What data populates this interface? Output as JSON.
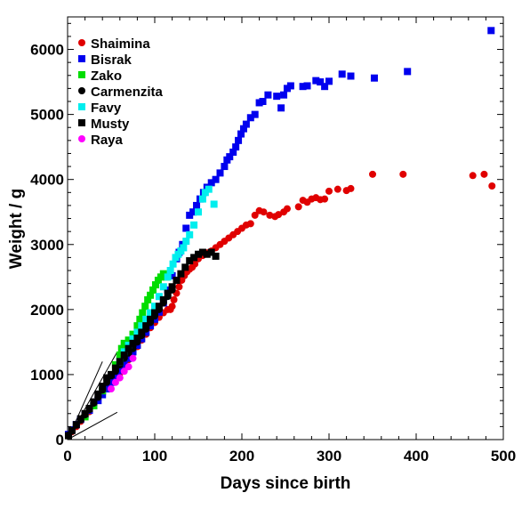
{
  "chart_data": {
    "type": "scatter",
    "title": "",
    "xlabel": "Days since birth",
    "ylabel": "Weight / g",
    "xlim": [
      0,
      500
    ],
    "ylim": [
      0,
      6500
    ],
    "x_ticks": [
      0,
      100,
      200,
      300,
      400,
      500
    ],
    "y_ticks": [
      0,
      1000,
      2000,
      3000,
      4000,
      5000,
      6000
    ],
    "grid": false,
    "legend_position": "top-left",
    "series": [
      {
        "name": "Shaimina",
        "marker": "circle",
        "color": "#e00000",
        "points": [
          [
            1,
            60
          ],
          [
            5,
            120
          ],
          [
            10,
            200
          ],
          [
            15,
            280
          ],
          [
            20,
            350
          ],
          [
            25,
            430
          ],
          [
            30,
            520
          ],
          [
            35,
            620
          ],
          [
            40,
            700
          ],
          [
            45,
            790
          ],
          [
            50,
            880
          ],
          [
            55,
            950
          ],
          [
            60,
            1020
          ],
          [
            65,
            1120
          ],
          [
            70,
            1230
          ],
          [
            75,
            1330
          ],
          [
            80,
            1430
          ],
          [
            85,
            1530
          ],
          [
            90,
            1620
          ],
          [
            95,
            1720
          ],
          [
            100,
            1800
          ],
          [
            105,
            1880
          ],
          [
            110,
            1950
          ],
          [
            115,
            2000
          ],
          [
            118,
            2000
          ],
          [
            120,
            2050
          ],
          [
            122,
            2150
          ],
          [
            125,
            2250
          ],
          [
            128,
            2350
          ],
          [
            131,
            2450
          ],
          [
            134,
            2520
          ],
          [
            137,
            2580
          ],
          [
            140,
            2620
          ],
          [
            143,
            2650
          ],
          [
            146,
            2700
          ],
          [
            150,
            2780
          ],
          [
            155,
            2830
          ],
          [
            160,
            2870
          ],
          [
            165,
            2900
          ],
          [
            170,
            2950
          ],
          [
            175,
            3000
          ],
          [
            180,
            3050
          ],
          [
            185,
            3100
          ],
          [
            190,
            3150
          ],
          [
            195,
            3200
          ],
          [
            200,
            3250
          ],
          [
            205,
            3300
          ],
          [
            210,
            3320
          ],
          [
            215,
            3450
          ],
          [
            220,
            3520
          ],
          [
            225,
            3500
          ],
          [
            232,
            3450
          ],
          [
            238,
            3430
          ],
          [
            242,
            3460
          ],
          [
            248,
            3500
          ],
          [
            252,
            3550
          ],
          [
            265,
            3580
          ],
          [
            270,
            3680
          ],
          [
            275,
            3650
          ],
          [
            280,
            3700
          ],
          [
            285,
            3720
          ],
          [
            290,
            3690
          ],
          [
            295,
            3700
          ],
          [
            300,
            3820
          ],
          [
            310,
            3850
          ],
          [
            320,
            3830
          ],
          [
            325,
            3860
          ],
          [
            350,
            4080
          ],
          [
            385,
            4080
          ],
          [
            465,
            4060
          ],
          [
            478,
            4080
          ],
          [
            487,
            3900
          ]
        ]
      },
      {
        "name": "Bisrak",
        "marker": "square",
        "color": "#0000ee",
        "points": [
          [
            1,
            80
          ],
          [
            5,
            150
          ],
          [
            10,
            230
          ],
          [
            15,
            310
          ],
          [
            20,
            380
          ],
          [
            25,
            450
          ],
          [
            30,
            520
          ],
          [
            35,
            600
          ],
          [
            40,
            690
          ],
          [
            45,
            780
          ],
          [
            50,
            880
          ],
          [
            55,
            970
          ],
          [
            60,
            1060
          ],
          [
            65,
            1160
          ],
          [
            70,
            1250
          ],
          [
            75,
            1350
          ],
          [
            80,
            1450
          ],
          [
            85,
            1550
          ],
          [
            90,
            1650
          ],
          [
            95,
            1750
          ],
          [
            100,
            1850
          ],
          [
            105,
            1960
          ],
          [
            110,
            2100
          ],
          [
            115,
            2300
          ],
          [
            120,
            2520
          ],
          [
            125,
            2780
          ],
          [
            128,
            2880
          ],
          [
            132,
            3000
          ],
          [
            136,
            3250
          ],
          [
            140,
            3450
          ],
          [
            144,
            3500
          ],
          [
            148,
            3600
          ],
          [
            152,
            3700
          ],
          [
            156,
            3800
          ],
          [
            160,
            3880
          ],
          [
            165,
            3950
          ],
          [
            170,
            4000
          ],
          [
            175,
            4100
          ],
          [
            180,
            4200
          ],
          [
            183,
            4300
          ],
          [
            186,
            4350
          ],
          [
            190,
            4420
          ],
          [
            193,
            4500
          ],
          [
            196,
            4600
          ],
          [
            199,
            4700
          ],
          [
            202,
            4780
          ],
          [
            205,
            4850
          ],
          [
            210,
            4950
          ],
          [
            215,
            5000
          ],
          [
            220,
            5180
          ],
          [
            224,
            5200
          ],
          [
            230,
            5300
          ],
          [
            240,
            5280
          ],
          [
            245,
            5100
          ],
          [
            248,
            5300
          ],
          [
            252,
            5400
          ],
          [
            256,
            5440
          ],
          [
            270,
            5430
          ],
          [
            275,
            5440
          ],
          [
            285,
            5520
          ],
          [
            290,
            5500
          ],
          [
            295,
            5430
          ],
          [
            300,
            5510
          ],
          [
            315,
            5620
          ],
          [
            325,
            5590
          ],
          [
            352,
            5560
          ],
          [
            390,
            5660
          ],
          [
            486,
            6290
          ]
        ]
      },
      {
        "name": "Zako",
        "marker": "square",
        "color": "#00dd00",
        "points": [
          [
            20,
            350
          ],
          [
            30,
            520
          ],
          [
            40,
            750
          ],
          [
            50,
            1000
          ],
          [
            55,
            1150
          ],
          [
            60,
            1300
          ],
          [
            62,
            1400
          ],
          [
            65,
            1480
          ],
          [
            70,
            1530
          ],
          [
            75,
            1620
          ],
          [
            80,
            1750
          ],
          [
            83,
            1850
          ],
          [
            86,
            1950
          ],
          [
            89,
            2050
          ],
          [
            92,
            2150
          ],
          [
            95,
            2220
          ],
          [
            98,
            2300
          ],
          [
            101,
            2380
          ],
          [
            104,
            2450
          ],
          [
            107,
            2500
          ],
          [
            110,
            2550
          ],
          [
            113,
            2500
          ]
        ]
      },
      {
        "name": "Carmenzita",
        "marker": "circle",
        "color": "#000000",
        "points": [
          [
            1,
            70
          ],
          [
            5,
            130
          ],
          [
            10,
            220
          ],
          [
            15,
            300
          ],
          [
            20,
            380
          ],
          [
            25,
            460
          ],
          [
            30,
            560
          ],
          [
            35,
            650
          ],
          [
            40,
            760
          ],
          [
            45,
            880
          ],
          [
            50,
            980
          ],
          [
            55,
            1050
          ],
          [
            60,
            1150
          ],
          [
            65,
            1250
          ],
          [
            70,
            1330
          ],
          [
            75,
            1400
          ],
          [
            80,
            1500
          ],
          [
            85,
            1600
          ],
          [
            90,
            1700
          ],
          [
            95,
            1800
          ],
          [
            100,
            1900
          ],
          [
            105,
            2000
          ],
          [
            110,
            2100
          ],
          [
            115,
            2200
          ],
          [
            120,
            2300
          ]
        ]
      },
      {
        "name": "Favy",
        "marker": "square",
        "color": "#00eeee",
        "points": [
          [
            60,
            1200
          ],
          [
            65,
            1350
          ],
          [
            70,
            1450
          ],
          [
            75,
            1550
          ],
          [
            80,
            1650
          ],
          [
            85,
            1750
          ],
          [
            90,
            1850
          ],
          [
            95,
            1950
          ],
          [
            100,
            2050
          ],
          [
            105,
            2200
          ],
          [
            110,
            2350
          ],
          [
            115,
            2500
          ],
          [
            118,
            2600
          ],
          [
            121,
            2700
          ],
          [
            124,
            2800
          ],
          [
            127,
            2850
          ],
          [
            130,
            2900
          ],
          [
            133,
            2950
          ],
          [
            136,
            3050
          ],
          [
            140,
            3150
          ],
          [
            145,
            3300
          ],
          [
            150,
            3500
          ],
          [
            155,
            3700
          ],
          [
            158,
            3800
          ],
          [
            162,
            3850
          ],
          [
            168,
            3620
          ]
        ]
      },
      {
        "name": "Musty",
        "marker": "square",
        "color": "#000000",
        "points": [
          [
            1,
            60
          ],
          [
            5,
            140
          ],
          [
            10,
            230
          ],
          [
            15,
            320
          ],
          [
            20,
            400
          ],
          [
            25,
            480
          ],
          [
            30,
            580
          ],
          [
            35,
            700
          ],
          [
            40,
            820
          ],
          [
            45,
            950
          ],
          [
            50,
            1000
          ],
          [
            55,
            1100
          ],
          [
            60,
            1200
          ],
          [
            65,
            1300
          ],
          [
            70,
            1400
          ],
          [
            75,
            1480
          ],
          [
            80,
            1560
          ],
          [
            85,
            1650
          ],
          [
            90,
            1750
          ],
          [
            95,
            1850
          ],
          [
            100,
            1950
          ],
          [
            105,
            2050
          ],
          [
            110,
            2150
          ],
          [
            115,
            2250
          ],
          [
            120,
            2350
          ],
          [
            125,
            2450
          ],
          [
            130,
            2550
          ],
          [
            135,
            2650
          ],
          [
            140,
            2750
          ],
          [
            145,
            2800
          ],
          [
            150,
            2850
          ],
          [
            155,
            2880
          ],
          [
            160,
            2850
          ],
          [
            165,
            2880
          ],
          [
            170,
            2820
          ]
        ]
      },
      {
        "name": "Raya",
        "marker": "circle",
        "color": "#ff00ff",
        "points": [
          [
            50,
            780
          ],
          [
            55,
            880
          ],
          [
            60,
            950
          ],
          [
            65,
            1050
          ],
          [
            70,
            1120
          ],
          [
            75,
            1250
          ]
        ]
      }
    ],
    "reference_lines": [
      {
        "points": [
          [
            0,
            0
          ],
          [
            57,
            1350
          ]
        ]
      },
      {
        "points": [
          [
            0,
            0
          ],
          [
            57,
            420
          ]
        ]
      },
      {
        "points": [
          [
            0,
            0
          ],
          [
            40,
            1200
          ]
        ]
      }
    ]
  }
}
